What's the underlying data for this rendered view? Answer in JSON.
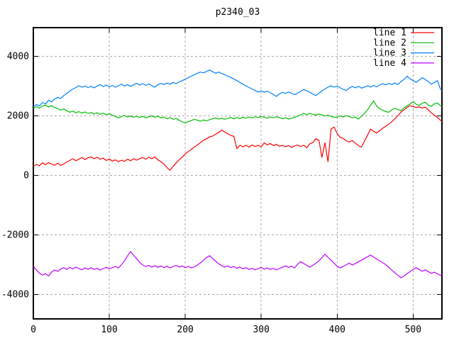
{
  "title": "p2340_03",
  "chart_data": {
    "type": "line",
    "title": "p2340_03",
    "xlabel": "",
    "ylabel": "",
    "xlim": [
      0,
      538
    ],
    "ylim": [
      -4820,
      4960
    ],
    "x_ticks": [
      0,
      100,
      200,
      300,
      400,
      500
    ],
    "y_ticks": [
      -4000,
      -2000,
      0,
      2000,
      4000
    ],
    "grid": true,
    "grid_style": "dashed",
    "legend_position": "top-right",
    "colors": {
      "background": "#ffffff",
      "border": "#000000",
      "grid": "#a8a8a8",
      "text": "#000000"
    },
    "x_start": 0,
    "x_step": 4,
    "series": [
      {
        "name": "line 1",
        "color": "#ff0000",
        "values": [
          300,
          370,
          320,
          420,
          360,
          430,
          380,
          340,
          410,
          330,
          380,
          450,
          500,
          560,
          490,
          540,
          600,
          530,
          590,
          620,
          560,
          610,
          540,
          580,
          500,
          550,
          480,
          520,
          460,
          510,
          470,
          540,
          490,
          560,
          510,
          560,
          600,
          540,
          610,
          560,
          620,
          520,
          460,
          380,
          260,
          170,
          300,
          420,
          520,
          610,
          720,
          800,
          870,
          950,
          1020,
          1100,
          1180,
          1230,
          1290,
          1320,
          1380,
          1440,
          1520,
          1460,
          1400,
          1340,
          1310,
          900,
          1010,
          960,
          1010,
          950,
          1020,
          970,
          1010,
          960,
          1090,
          1020,
          1070,
          1000,
          1040,
          980,
          1010,
          960,
          1000,
          940,
          990,
          1020,
          970,
          1010,
          930,
          1060,
          1100,
          1230,
          1180,
          600,
          1100,
          450,
          1560,
          1620,
          1400,
          1280,
          1240,
          1160,
          1120,
          1170,
          1080,
          1000,
          950,
          1150,
          1350,
          1550,
          1480,
          1420,
          1500,
          1580,
          1650,
          1720,
          1800,
          1900,
          2000,
          2120,
          2200,
          2280,
          2340,
          2310,
          2280,
          2300,
          2260,
          2290,
          2200,
          2100,
          2020,
          1950,
          1850,
          1760
        ]
      },
      {
        "name": "line 2",
        "color": "#00c000",
        "values": [
          2250,
          2310,
          2260,
          2330,
          2360,
          2300,
          2340,
          2280,
          2240,
          2190,
          2230,
          2170,
          2120,
          2160,
          2100,
          2140,
          2090,
          2130,
          2080,
          2110,
          2060,
          2100,
          2050,
          2090,
          2040,
          2070,
          2020,
          1980,
          1930,
          1970,
          2010,
          1960,
          2000,
          1950,
          1990,
          1940,
          1980,
          1930,
          1970,
          2000,
          1950,
          1990,
          1930,
          1960,
          1900,
          1940,
          1880,
          1910,
          1850,
          1800,
          1760,
          1800,
          1840,
          1880,
          1850,
          1820,
          1860,
          1830,
          1870,
          1900,
          1930,
          1890,
          1920,
          1880,
          1910,
          1940,
          1900,
          1940,
          1910,
          1950,
          1920,
          1960,
          1930,
          1970,
          1940,
          1980,
          1950,
          1920,
          1960,
          1930,
          1970,
          1940,
          1900,
          1930,
          1890,
          1920,
          1950,
          1990,
          2030,
          2080,
          2040,
          2080,
          2050,
          2020,
          2060,
          2030,
          1990,
          2020,
          1980,
          1950,
          1950,
          2000,
          1960,
          2010,
          1970,
          1930,
          1960,
          1890,
          1980,
          2080,
          2200,
          2350,
          2500,
          2330,
          2240,
          2190,
          2140,
          2120,
          2200,
          2260,
          2210,
          2170,
          2270,
          2330,
          2400,
          2470,
          2390,
          2350,
          2420,
          2460,
          2360,
          2320,
          2400,
          2430,
          2340,
          2290
        ]
      },
      {
        "name": "line 3",
        "color": "#0080ff",
        "values": [
          2300,
          2380,
          2330,
          2450,
          2400,
          2520,
          2470,
          2560,
          2620,
          2580,
          2680,
          2750,
          2830,
          2900,
          2950,
          3010,
          2960,
          3000,
          2950,
          2990,
          2940,
          3000,
          3050,
          2980,
          3030,
          2970,
          3020,
          2960,
          3010,
          3060,
          3000,
          3050,
          2990,
          3040,
          3090,
          3030,
          3080,
          3020,
          3070,
          3010,
          2960,
          3040,
          3090,
          3050,
          3100,
          3060,
          3120,
          3080,
          3140,
          3180,
          3230,
          3280,
          3330,
          3380,
          3430,
          3470,
          3440,
          3490,
          3540,
          3480,
          3430,
          3470,
          3420,
          3380,
          3330,
          3290,
          3240,
          3180,
          3120,
          3060,
          3000,
          2950,
          2900,
          2850,
          2800,
          2840,
          2790,
          2830,
          2770,
          2720,
          2650,
          2730,
          2790,
          2750,
          2800,
          2760,
          2710,
          2760,
          2820,
          2880,
          2840,
          2790,
          2730,
          2680,
          2760,
          2840,
          2900,
          2960,
          3010,
          2960,
          3000,
          2940,
          2890,
          2850,
          2930,
          2990,
          2940,
          2990,
          2930,
          2960,
          3010,
          2960,
          3020,
          2970,
          3030,
          3080,
          3040,
          3090,
          3050,
          3100,
          3050,
          3150,
          3220,
          3330,
          3240,
          3180,
          3120,
          3200,
          3280,
          3220,
          3150,
          3060,
          3120,
          3180,
          2900,
          2780
        ]
      },
      {
        "name": "line 4",
        "color": "#c000ff",
        "values": [
          -3050,
          -3180,
          -3280,
          -3350,
          -3300,
          -3380,
          -3250,
          -3180,
          -3220,
          -3150,
          -3100,
          -3160,
          -3090,
          -3140,
          -3080,
          -3130,
          -3170,
          -3110,
          -3150,
          -3100,
          -3160,
          -3120,
          -3180,
          -3130,
          -3090,
          -3140,
          -3100,
          -3060,
          -3110,
          -3000,
          -2870,
          -2700,
          -2560,
          -2680,
          -2800,
          -2920,
          -3010,
          -3060,
          -3020,
          -3080,
          -3030,
          -3090,
          -3040,
          -3100,
          -3050,
          -3110,
          -3060,
          -3020,
          -3080,
          -3040,
          -3100,
          -3060,
          -3110,
          -3070,
          -3010,
          -2940,
          -2850,
          -2760,
          -2700,
          -2790,
          -2880,
          -2970,
          -3030,
          -3080,
          -3040,
          -3100,
          -3060,
          -3120,
          -3080,
          -3140,
          -3100,
          -3160,
          -3120,
          -3170,
          -3130,
          -3090,
          -3150,
          -3110,
          -3160,
          -3120,
          -3170,
          -3130,
          -3080,
          -3040,
          -3090,
          -3050,
          -3110,
          -2980,
          -2900,
          -2960,
          -3020,
          -3080,
          -3020,
          -2950,
          -2870,
          -2760,
          -2650,
          -2750,
          -2850,
          -2950,
          -3050,
          -3110,
          -3060,
          -3000,
          -2950,
          -3010,
          -2960,
          -2900,
          -2850,
          -2790,
          -2730,
          -2680,
          -2740,
          -2810,
          -2870,
          -2930,
          -3000,
          -3090,
          -3180,
          -3270,
          -3350,
          -3440,
          -3380,
          -3300,
          -3230,
          -3160,
          -3100,
          -3160,
          -3220,
          -3170,
          -3230,
          -3290,
          -3250,
          -3310,
          -3360,
          -3300
        ]
      }
    ]
  }
}
